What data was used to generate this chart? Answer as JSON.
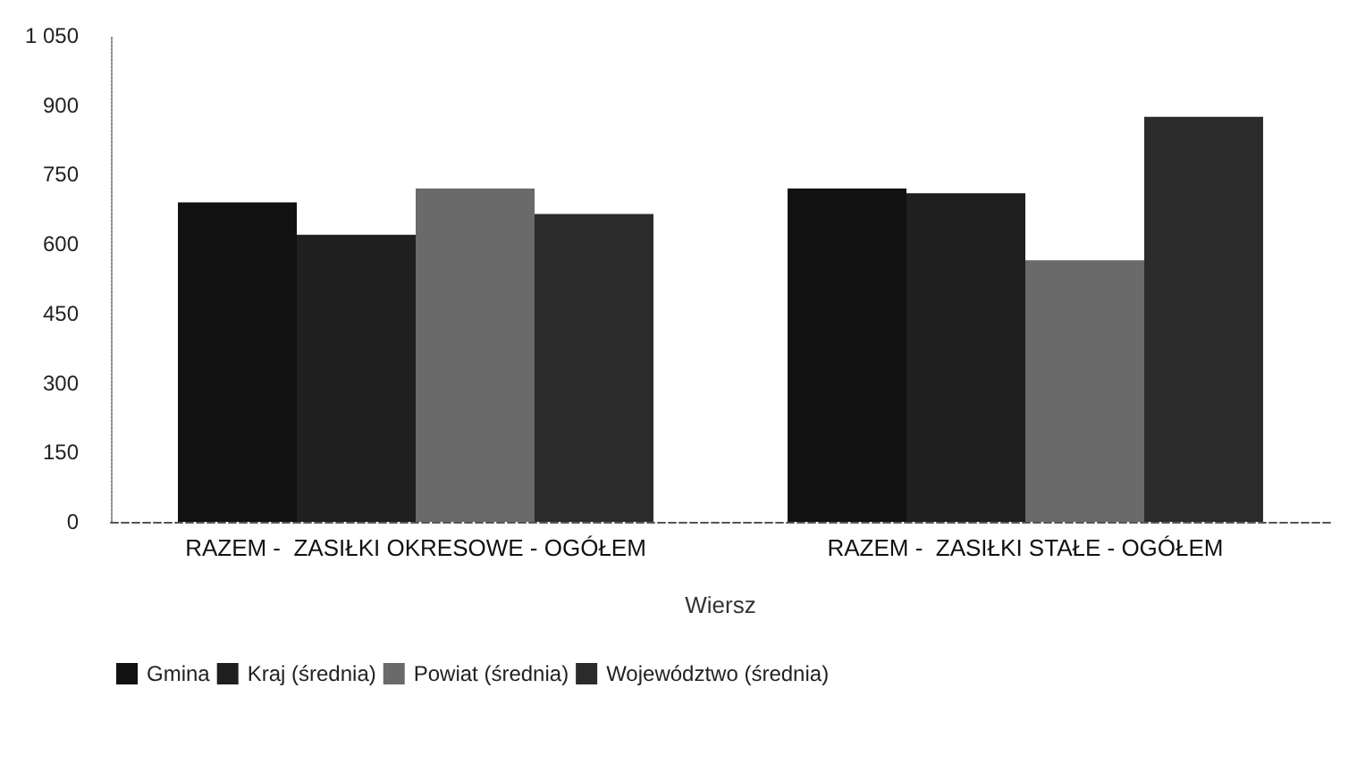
{
  "chart_data": {
    "type": "bar",
    "xlabel": "Wiersz",
    "categories": [
      "RAZEM -  ZASIŁKI OKRESOWE - OGÓŁEM",
      "RAZEM -  ZASIŁKI STAŁE - OGÓŁEM"
    ],
    "series": [
      {
        "name": "Gmina",
        "color": "#111111",
        "values": [
          690,
          720
        ]
      },
      {
        "name": "Kraj (średnia)",
        "color": "#1f1f1f",
        "values": [
          620,
          710
        ]
      },
      {
        "name": "Powiat (średnia)",
        "color": "#6a6a6a",
        "values": [
          720,
          565
        ]
      },
      {
        "name": "Województwo (średnia)",
        "color": "#2b2b2b",
        "values": [
          665,
          875
        ]
      }
    ],
    "ylim": [
      0,
      1050
    ],
    "yticks": [
      0,
      150,
      300,
      450,
      600,
      750,
      900,
      {
        "value": 1050,
        "label": "1 050"
      }
    ],
    "grid": false,
    "legend": "bottom left"
  }
}
